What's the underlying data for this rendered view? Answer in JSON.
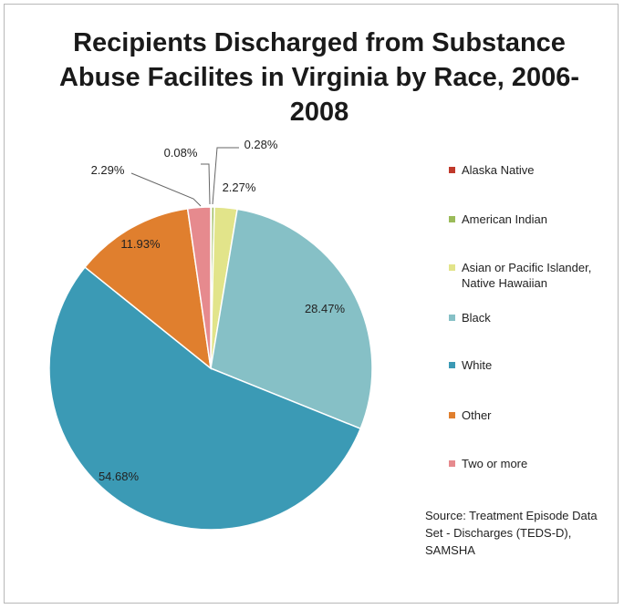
{
  "chart_data": {
    "type": "pie",
    "title": "Recipients Discharged from Substance Abuse Facilites in Virginia by Race, 2006-2008",
    "slices": [
      {
        "name": "Alaska Native",
        "value": 0.08,
        "label": "0.08%",
        "color": "#c0392b"
      },
      {
        "name": "American Indian",
        "value": 0.28,
        "label": "0.28%",
        "color": "#9bbb59"
      },
      {
        "name": "Asian or Pacific Islander, Native Hawaiian",
        "value": 2.27,
        "label": "2.27%",
        "color": "#e2e48a"
      },
      {
        "name": "Black",
        "value": 28.47,
        "label": "28.47%",
        "color": "#86c0c6"
      },
      {
        "name": "White",
        "value": 54.68,
        "label": "54.68%",
        "color": "#3b9ab5"
      },
      {
        "name": "Other",
        "value": 11.93,
        "label": "11.93%",
        "color": "#e07f2e"
      },
      {
        "name": "Two or more",
        "value": 2.29,
        "label": "2.29%",
        "color": "#e68a8e"
      }
    ],
    "legend_position": "right",
    "source": "Source: Treatment Episode Data Set - Discharges (TEDS-D), SAMSHA"
  }
}
